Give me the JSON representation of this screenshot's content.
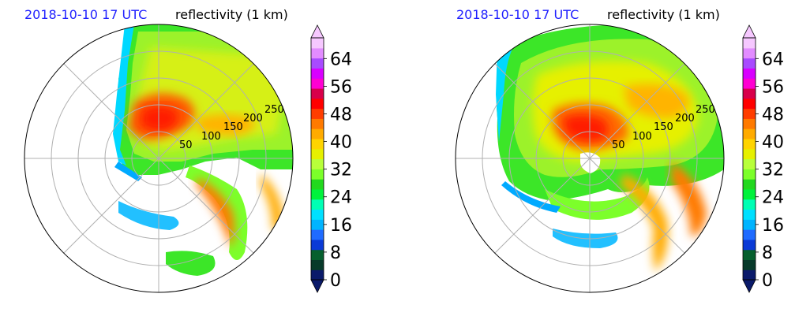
{
  "chart_data": [
    {
      "type": "heatmap",
      "projection": "polar",
      "title_left": "2018-10-10 17 UTC",
      "title_right": "reflectivity (1 km)",
      "range_rings": [
        "50",
        "100",
        "150",
        "200",
        "250"
      ],
      "colorbar": {
        "ticks": [
          "0",
          "8",
          "16",
          "24",
          "32",
          "40",
          "48",
          "56",
          "64"
        ],
        "range": [
          0,
          70
        ],
        "extend": "both",
        "colors": [
          "#0a1a6a",
          "#073a2a",
          "#06602e",
          "#0a3ad6",
          "#1f6bff",
          "#00b4ff",
          "#00e0ff",
          "#00ffb4",
          "#00f23c",
          "#22d81e",
          "#7cff2a",
          "#b8ff3a",
          "#e6f000",
          "#ffd400",
          "#ffab00",
          "#ff7a00",
          "#ff3d00",
          "#ff0000",
          "#d8004a",
          "#ff00d2",
          "#d800ff",
          "#a84bff",
          "#e28cff",
          "#f6c8ff"
        ]
      }
    },
    {
      "type": "heatmap",
      "projection": "polar",
      "title_left": "2018-10-10 17 UTC",
      "title_right": "reflectivity (1 km)",
      "range_rings": [
        "50",
        "100",
        "150",
        "200",
        "250"
      ],
      "colorbar": {
        "ticks": [
          "0",
          "8",
          "16",
          "24",
          "32",
          "40",
          "48",
          "56",
          "64"
        ],
        "range": [
          0,
          70
        ],
        "extend": "both",
        "colors": [
          "#0a1a6a",
          "#073a2a",
          "#06602e",
          "#0a3ad6",
          "#1f6bff",
          "#00b4ff",
          "#00e0ff",
          "#00ffb4",
          "#00f23c",
          "#22d81e",
          "#7cff2a",
          "#b8ff3a",
          "#e6f000",
          "#ffd400",
          "#ffab00",
          "#ff7a00",
          "#ff3d00",
          "#ff0000",
          "#d8004a",
          "#ff00d2",
          "#d800ff",
          "#a84bff",
          "#e28cff",
          "#f6c8ff"
        ]
      }
    }
  ]
}
